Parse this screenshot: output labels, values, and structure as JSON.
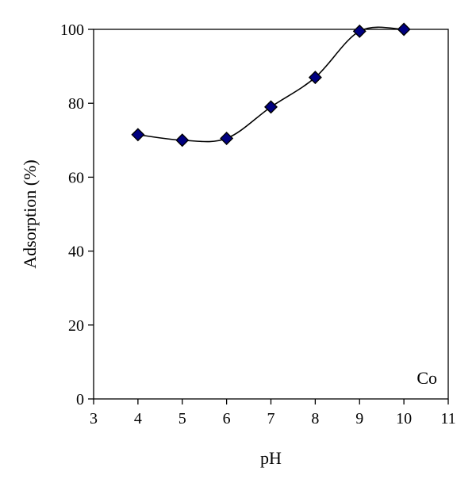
{
  "chart_data": {
    "type": "scatter",
    "xlabel": "pH",
    "ylabel": "Adsorption (%)",
    "xlim": [
      3,
      11
    ],
    "ylim": [
      0,
      100
    ],
    "xticks": [
      "3",
      "4",
      "5",
      "6",
      "7",
      "8",
      "9",
      "10",
      "11"
    ],
    "yticks": [
      "0",
      "20",
      "40",
      "60",
      "80",
      "100"
    ],
    "grid": false,
    "legend": "none",
    "annotation": "Co",
    "series": [
      {
        "x": [
          4,
          5,
          6,
          7,
          8,
          9,
          10
        ],
        "y": [
          71.5,
          70,
          70.5,
          79,
          87,
          99.5,
          100
        ],
        "marker": "diamond",
        "line": "smooth",
        "marker_color": "#000080"
      }
    ]
  }
}
